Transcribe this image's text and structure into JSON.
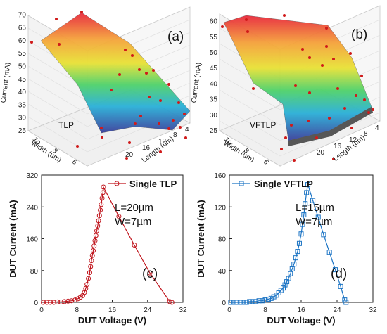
{
  "panels": [
    {
      "id": "a",
      "panel_label": "(a)",
      "annotation": "TLP",
      "zlabel": "Current (mA)",
      "xlabel": "Width (um)",
      "ylabel": "Length (um)",
      "zticks": [
        "25",
        "30",
        "35",
        "40",
        "45",
        "50",
        "55",
        "60",
        "65",
        "70"
      ],
      "xticks": [
        "10",
        "8",
        "6"
      ],
      "yticks": [
        "4",
        "8",
        "12",
        "16",
        "20"
      ]
    },
    {
      "id": "b",
      "panel_label": "(b)",
      "annotation": "VFTLP",
      "zlabel": "Current (mA)",
      "xlabel": "Width (um)",
      "ylabel": "Length (um)",
      "zticks": [
        "25",
        "30",
        "35",
        "40",
        "45",
        "50",
        "55",
        "60"
      ],
      "xticks": [
        "10",
        "8",
        "6"
      ],
      "yticks": [
        "4",
        "8",
        "12",
        "16",
        "20"
      ]
    }
  ],
  "colors": {
    "tlp": "#c0141c",
    "vftlp": "#1a73c4"
  },
  "chart_data": [
    {
      "type": "line",
      "panel_label": "(c)",
      "xlabel": "DUT Voltage (V)",
      "ylabel": "DUT Current (mA)",
      "xlim": [
        0,
        32
      ],
      "ylim": [
        0,
        320
      ],
      "xticks": [
        0,
        8,
        16,
        24,
        32
      ],
      "yticks": [
        0,
        80,
        160,
        240,
        320
      ],
      "annotation": [
        "L=20µm",
        "W=7µm"
      ],
      "series": [
        {
          "name": "Single TLP",
          "marker": "circle",
          "x": [
            0.4,
            1.2,
            2.0,
            2.8,
            3.6,
            4.4,
            5.2,
            6.0,
            6.8,
            7.6,
            8.2,
            8.8,
            9.3,
            9.7,
            10.0,
            10.3,
            10.6,
            10.9,
            11.1,
            11.3,
            11.5,
            11.7,
            11.9,
            12.1,
            12.3,
            12.5,
            12.7,
            12.9,
            13.1,
            13.3,
            13.5,
            13.7,
            13.9,
            14.0,
            17.5,
            21.0,
            24.5,
            29.0,
            29.5
          ],
          "y": [
            0,
            0,
            0,
            0,
            1,
            1,
            2,
            3,
            4,
            6,
            9,
            13,
            17,
            25,
            35,
            45,
            60,
            75,
            90,
            105,
            118,
            130,
            142,
            155,
            168,
            180,
            192,
            205,
            218,
            232,
            246,
            262,
            276,
            290,
            216,
            144,
            74,
            2,
            0
          ]
        }
      ]
    },
    {
      "type": "line",
      "panel_label": "(d)",
      "xlabel": "DUT Voltage (V)",
      "ylabel": "DUT Current (mA)",
      "xlim": [
        0,
        32
      ],
      "ylim": [
        0,
        160
      ],
      "xticks": [
        0,
        8,
        16,
        24,
        32
      ],
      "yticks": [
        0,
        40,
        80,
        120,
        160
      ],
      "annotation": [
        "L=15µm",
        "W=7µm"
      ],
      "series": [
        {
          "name": "Single VFTLP",
          "marker": "square",
          "x": [
            0.3,
            1.0,
            1.7,
            2.4,
            3.1,
            3.8,
            4.5,
            5.2,
            5.9,
            6.6,
            7.3,
            8.0,
            8.7,
            9.3,
            9.9,
            10.5,
            11.0,
            11.5,
            12.0,
            12.4,
            12.8,
            13.2,
            13.6,
            14.0,
            14.4,
            14.8,
            15.2,
            15.6,
            16.0,
            16.3,
            16.6,
            16.9,
            17.2,
            17.5,
            18.6,
            19.8,
            21.0,
            22.3,
            23.6,
            24.8,
            25.7,
            26.0
          ],
          "y": [
            0,
            0,
            0,
            0,
            0,
            0,
            1,
            1,
            1,
            2,
            2,
            3,
            4,
            5,
            7,
            9,
            12,
            15,
            18,
            22,
            26,
            30,
            36,
            42,
            48,
            56,
            64,
            74,
            86,
            98,
            110,
            124,
            138,
            148,
            128,
            107,
            85,
            63,
            41,
            20,
            3,
            0
          ]
        }
      ]
    }
  ]
}
